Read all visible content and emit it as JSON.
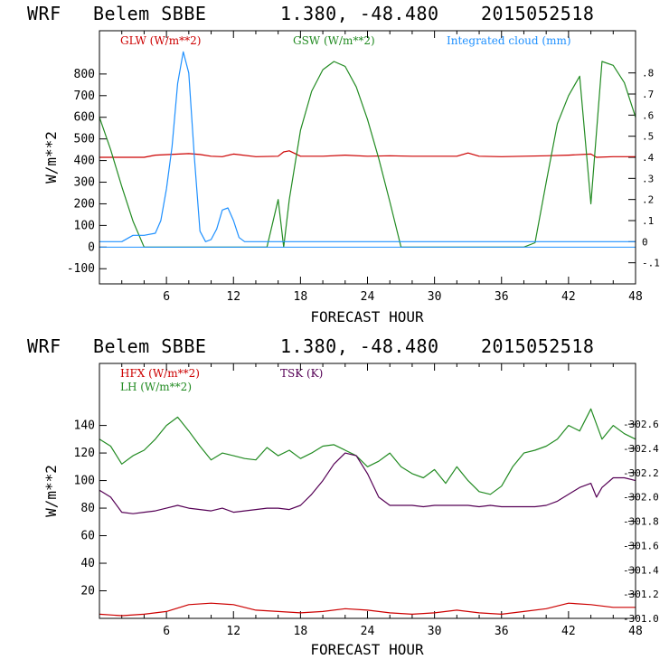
{
  "chart_data": [
    {
      "type": "line",
      "header": {
        "model": "WRF",
        "station": "Belem SBBE",
        "coords": "1.380, -48.480",
        "date": "2015052518"
      },
      "xlabel": "FORECAST HOUR",
      "ylabel": "W/m**2",
      "xlim": [
        0,
        48
      ],
      "ylim": [
        -170,
        1000
      ],
      "ylim_right": [
        -0.2,
        1.0
      ],
      "x_ticks": [
        "6",
        "12",
        "18",
        "24",
        "30",
        "36",
        "42",
        "48"
      ],
      "y_ticks": [
        "800",
        "700",
        "600",
        "500",
        "400",
        "300",
        "200",
        "100",
        "0",
        "-100"
      ],
      "y_ticks_right": [
        ".8",
        ".7",
        ".6",
        ".5",
        ".4",
        ".3",
        ".2",
        ".1",
        "0",
        "-.1"
      ],
      "series": [
        {
          "name": "GLW (W/m**2)",
          "axis": "left",
          "color": "#cc0000",
          "x": [
            0,
            4,
            5,
            8,
            9,
            10,
            11,
            12,
            14,
            16,
            16.5,
            17,
            18,
            20,
            22,
            24,
            26,
            28,
            30,
            32,
            33,
            34,
            36,
            38,
            40,
            42,
            44,
            44.5,
            46,
            48
          ],
          "y": [
            415,
            415,
            425,
            432,
            428,
            420,
            418,
            430,
            418,
            420,
            440,
            445,
            420,
            420,
            425,
            420,
            422,
            420,
            420,
            420,
            435,
            420,
            418,
            420,
            422,
            425,
            430,
            415,
            418,
            418
          ]
        },
        {
          "name": "GSW (W/m**2)",
          "axis": "left",
          "color": "#228b22",
          "x": [
            0,
            1,
            2,
            3,
            4,
            12,
            15,
            16,
            16.5,
            17,
            17.5,
            18,
            19,
            20,
            21,
            22,
            23,
            24,
            25,
            26,
            27,
            28,
            38,
            39,
            40,
            41,
            42,
            43,
            44,
            45,
            46,
            47,
            48
          ],
          "y": [
            600,
            450,
            280,
            120,
            0,
            0,
            0,
            220,
            0,
            220,
            380,
            540,
            720,
            820,
            858,
            835,
            740,
            590,
            410,
            210,
            0,
            0,
            0,
            20,
            300,
            570,
            700,
            790,
            200,
            858,
            840,
            760,
            600
          ]
        },
        {
          "name": "Integrated cloud (mm)",
          "axis": "right",
          "color": "#1e90ff",
          "x": [
            0,
            2,
            3,
            4,
            5,
            5.5,
            6,
            6.5,
            7,
            7.5,
            8,
            8.5,
            9,
            9.5,
            10,
            10.5,
            11,
            11.5,
            12,
            12.5,
            13,
            24,
            48
          ],
          "y": [
            0,
            0,
            0.03,
            0.03,
            0.04,
            0.1,
            0.25,
            0.45,
            0.75,
            0.9,
            0.8,
            0.4,
            0.05,
            0,
            0.01,
            0.06,
            0.15,
            0.16,
            0.1,
            0.02,
            0,
            0,
            0
          ]
        }
      ],
      "legend": "top"
    },
    {
      "type": "line",
      "header": {
        "model": "WRF",
        "station": "Belem SBBE",
        "coords": "1.380, -48.480",
        "date": "2015052518"
      },
      "xlabel": "FORECAST HOUR",
      "ylabel": "W/m**2",
      "xlim": [
        0,
        48
      ],
      "ylim": [
        0,
        185
      ],
      "ylim_right": [
        301.0,
        303.1
      ],
      "x_ticks": [
        "6",
        "12",
        "18",
        "24",
        "30",
        "36",
        "42",
        "48"
      ],
      "y_ticks": [
        "140",
        "120",
        "100",
        "80",
        "60",
        "40",
        "20"
      ],
      "y_ticks_right": [
        "302.6",
        "302.4",
        "302.2",
        "302.0",
        "301.8",
        "301.6",
        "301.4",
        "301.2",
        "301.0"
      ],
      "series": [
        {
          "name": "HFX (W/m**2)",
          "axis": "left",
          "color": "#cc0000",
          "x": [
            0,
            2,
            4,
            6,
            8,
            10,
            12,
            14,
            16,
            18,
            20,
            22,
            24,
            26,
            28,
            30,
            32,
            34,
            36,
            38,
            40,
            42,
            44,
            46,
            48
          ],
          "y": [
            3,
            2,
            3,
            5,
            10,
            11,
            10,
            6,
            5,
            4,
            5,
            7,
            6,
            4,
            3,
            4,
            6,
            4,
            3,
            5,
            7,
            11,
            10,
            8,
            8
          ]
        },
        {
          "name": "LH (W/m**2)",
          "axis": "left",
          "color": "#228b22",
          "x": [
            0,
            1,
            2,
            3,
            4,
            5,
            6,
            7,
            8,
            9,
            10,
            11,
            12,
            13,
            14,
            15,
            16,
            17,
            18,
            19,
            20,
            21,
            22,
            23,
            24,
            25,
            26,
            27,
            28,
            29,
            30,
            31,
            32,
            33,
            34,
            35,
            36,
            37,
            38,
            39,
            40,
            41,
            42,
            43,
            44,
            45,
            46,
            47,
            48
          ],
          "y": [
            130,
            125,
            112,
            118,
            122,
            130,
            140,
            146,
            136,
            125,
            115,
            120,
            118,
            116,
            115,
            124,
            118,
            122,
            116,
            120,
            125,
            126,
            122,
            118,
            110,
            114,
            120,
            110,
            105,
            102,
            108,
            98,
            110,
            100,
            92,
            90,
            96,
            110,
            120,
            122,
            125,
            130,
            140,
            136,
            152,
            130,
            140,
            134,
            130
          ]
        },
        {
          "name": "TSK (K)",
          "axis": "left",
          "color": "#550055",
          "x": [
            0,
            1,
            2,
            3,
            4,
            5,
            6,
            7,
            8,
            9,
            10,
            11,
            12,
            13,
            14,
            15,
            16,
            17,
            18,
            19,
            20,
            21,
            22,
            23,
            24,
            25,
            26,
            27,
            28,
            29,
            30,
            31,
            32,
            33,
            34,
            35,
            36,
            37,
            38,
            39,
            40,
            41,
            42,
            43,
            44,
            44.5,
            45,
            46,
            47,
            48
          ],
          "y": [
            93,
            88,
            77,
            76,
            77,
            78,
            80,
            82,
            80,
            79,
            78,
            80,
            77,
            78,
            79,
            80,
            80,
            79,
            82,
            90,
            100,
            112,
            120,
            118,
            105,
            88,
            82,
            82,
            82,
            81,
            82,
            82,
            82,
            82,
            81,
            82,
            81,
            81,
            81,
            81,
            82,
            85,
            90,
            95,
            98,
            88,
            95,
            102,
            102,
            100
          ]
        }
      ],
      "legend": "top"
    }
  ]
}
